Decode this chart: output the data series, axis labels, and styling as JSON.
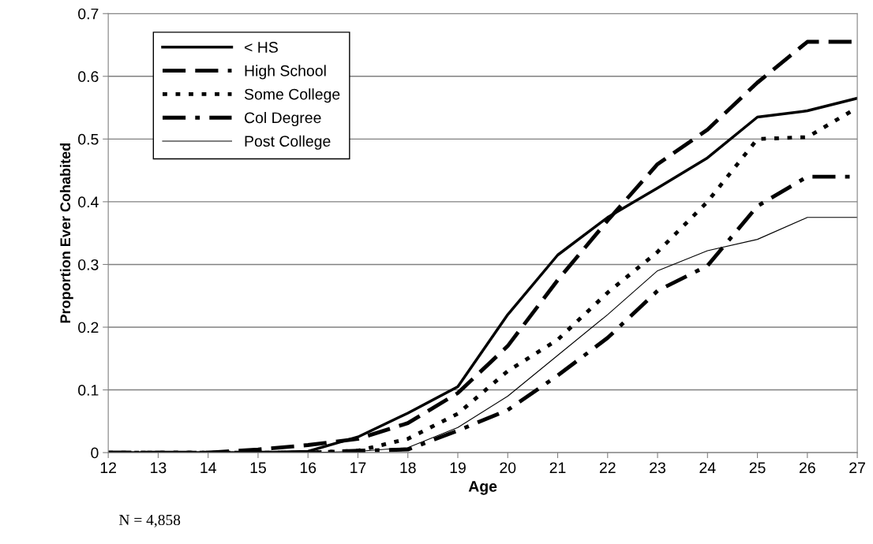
{
  "chart_data": {
    "type": "line",
    "xlabel": "Age",
    "ylabel": "Proportion Ever Cohabited",
    "x": [
      12,
      13,
      14,
      15,
      16,
      17,
      18,
      19,
      20,
      21,
      22,
      23,
      24,
      25,
      26,
      27
    ],
    "series": [
      {
        "name": "< HS",
        "color": "#000000",
        "line_style": "solid",
        "values": [
          0,
          0,
          0,
          0,
          0.002,
          0.025,
          0.063,
          0.105,
          0.22,
          0.315,
          0.375,
          0.422,
          0.47,
          0.535,
          0.545,
          0.565
        ]
      },
      {
        "name": "High School",
        "color": "#000000",
        "line_style": "dashed",
        "values": [
          0,
          0,
          0,
          0.005,
          0.012,
          0.022,
          0.047,
          0.095,
          0.17,
          0.275,
          0.37,
          0.46,
          0.515,
          0.59,
          0.655,
          0.655
        ]
      },
      {
        "name": "Some College",
        "color": "#000000",
        "line_style": "dotted",
        "values": [
          0,
          0,
          0,
          0,
          0,
          0.003,
          0.022,
          0.062,
          0.13,
          0.18,
          0.255,
          0.32,
          0.4,
          0.5,
          0.503,
          0.55
        ]
      },
      {
        "name": "Col Degree",
        "color": "#000000",
        "line_style": "dashdot",
        "values": [
          0,
          0,
          0,
          0,
          0,
          0.003,
          0.005,
          0.035,
          0.068,
          0.123,
          0.183,
          0.258,
          0.298,
          0.393,
          0.44,
          0.44
        ]
      },
      {
        "name": "Post College",
        "color": "#000000",
        "line_style": "solid",
        "values": [
          0,
          0,
          0,
          0,
          0,
          0.002,
          0.008,
          0.04,
          0.09,
          0.155,
          0.22,
          0.29,
          0.322,
          0.34,
          0.375,
          0.375
        ]
      }
    ],
    "xlim": [
      12,
      27
    ],
    "xticks": [
      12,
      13,
      14,
      15,
      16,
      17,
      18,
      19,
      20,
      21,
      22,
      23,
      24,
      25,
      26,
      27
    ],
    "ylim": [
      0,
      0.7
    ],
    "yticks": [
      0,
      0.1,
      0.2,
      0.3,
      0.4,
      0.5,
      0.6,
      0.7
    ],
    "grid": "y",
    "legend": "top left",
    "marker": "none",
    "annotations": [
      "N = 4,858"
    ]
  }
}
